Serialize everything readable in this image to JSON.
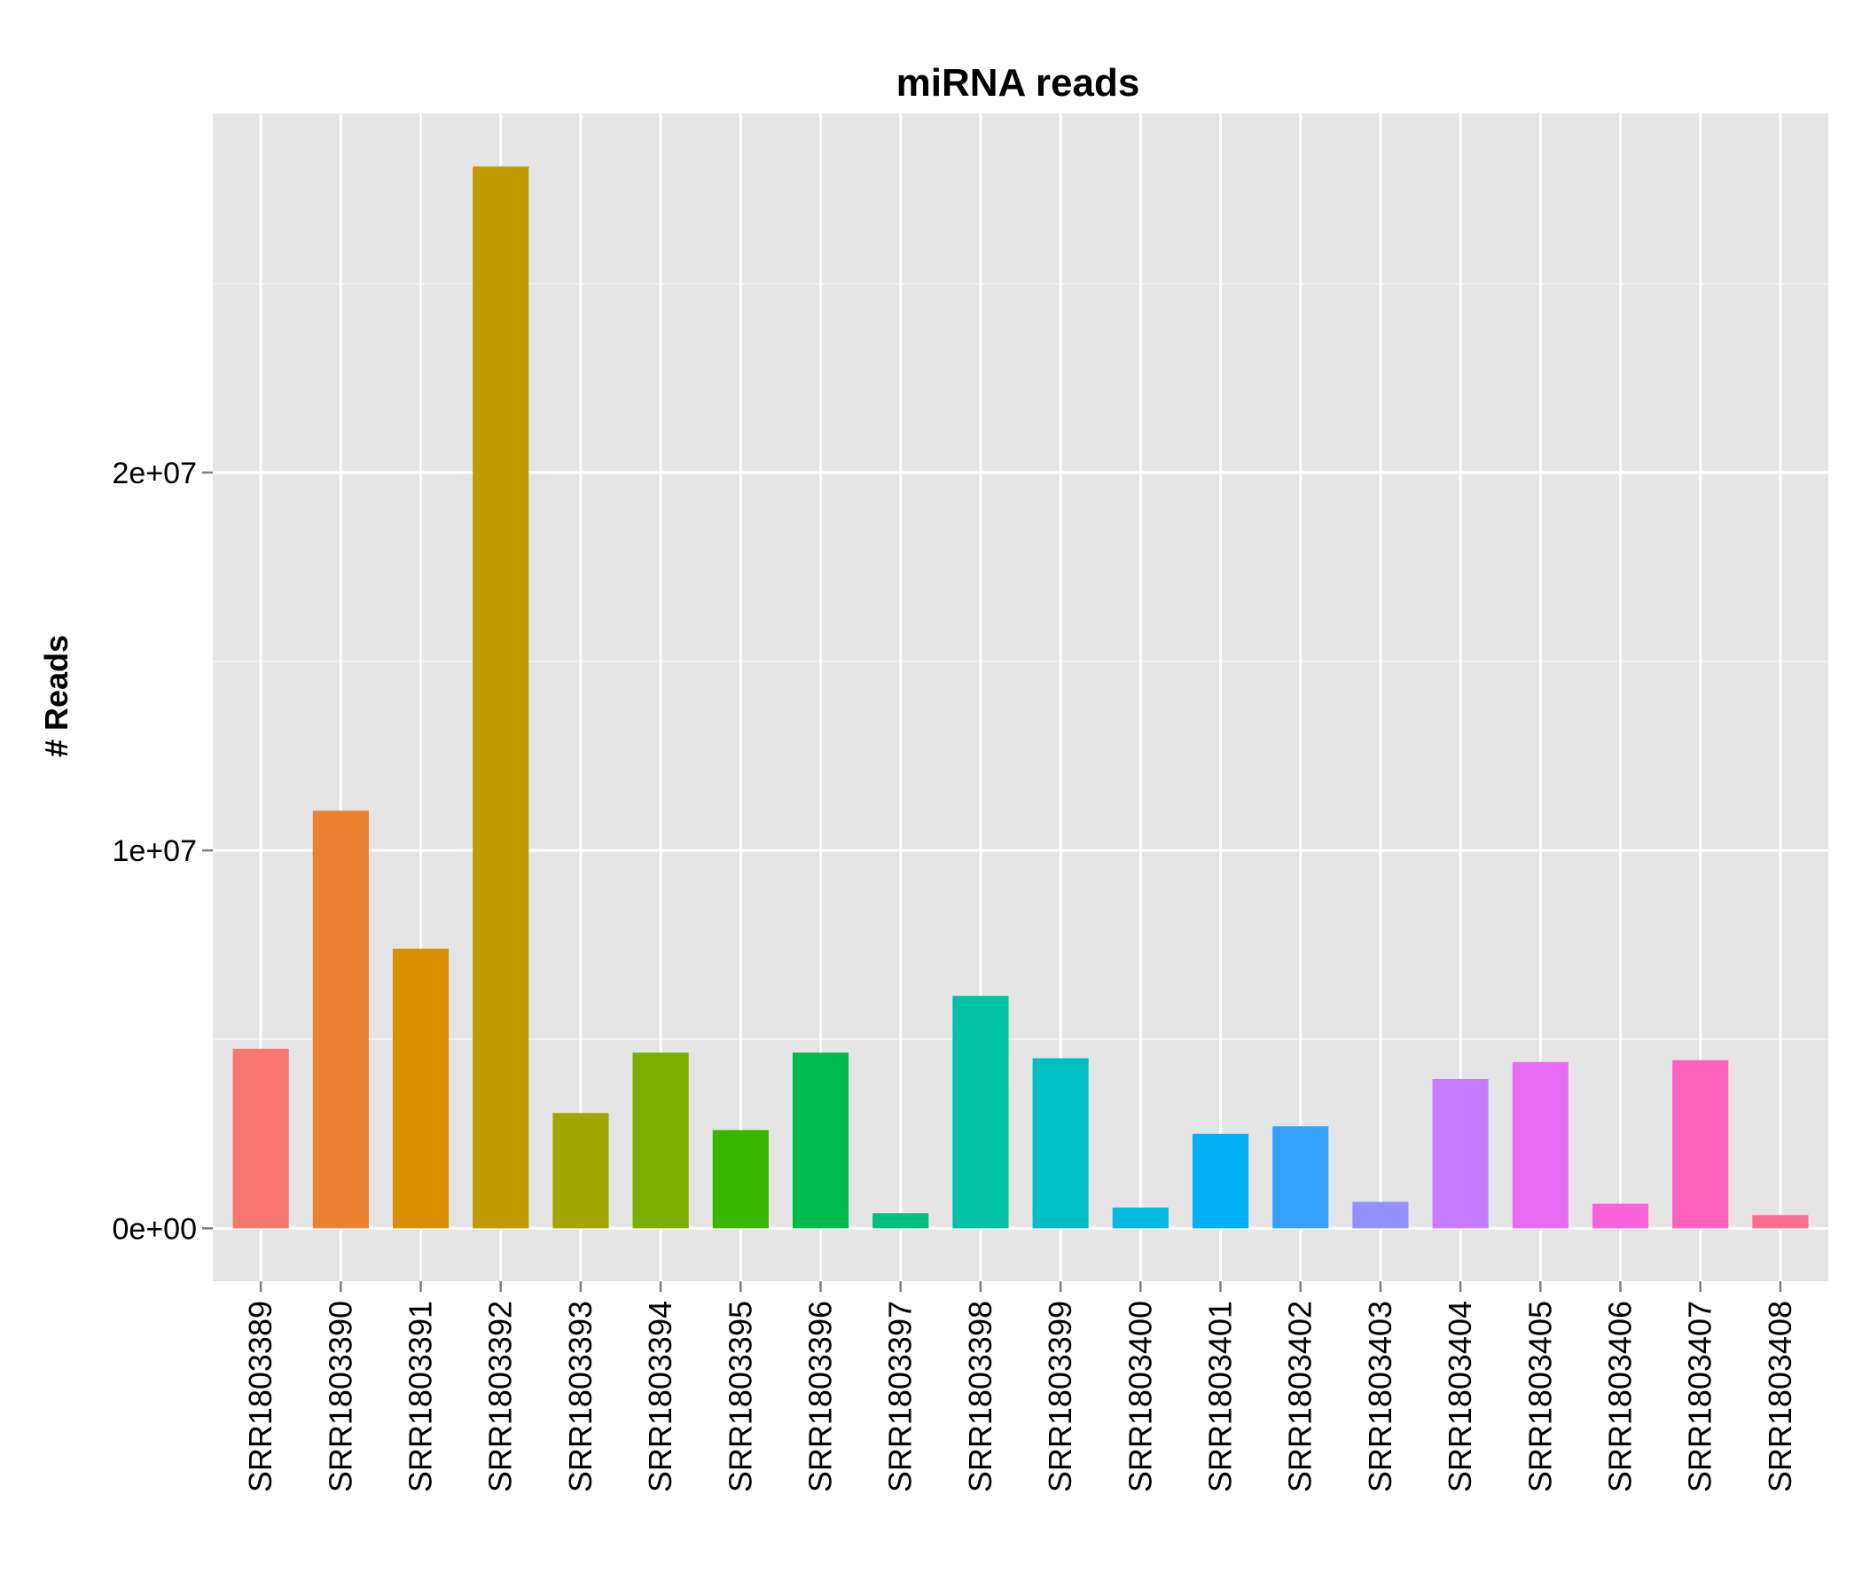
{
  "chart_data": {
    "type": "bar",
    "title": "miRNA reads",
    "xlabel": "",
    "ylabel": "# Reads",
    "categories": [
      "SRR1803389",
      "SRR1803390",
      "SRR1803391",
      "SRR1803392",
      "SRR1803393",
      "SRR1803394",
      "SRR1803395",
      "SRR1803396",
      "SRR1803397",
      "SRR1803398",
      "SRR1803399",
      "SRR1803400",
      "SRR1803401",
      "SRR1803402",
      "SRR1803403",
      "SRR1803404",
      "SRR1803405",
      "SRR1803406",
      "SRR1803407",
      "SRR1803408"
    ],
    "values": [
      4750000,
      11050000,
      7400000,
      28100000,
      3050000,
      4650000,
      2600000,
      4650000,
      400000,
      6150000,
      4500000,
      550000,
      2500000,
      2700000,
      700000,
      3950000,
      4400000,
      650000,
      4450000,
      350000
    ],
    "colors": [
      "#F8766D",
      "#EA8331",
      "#D89000",
      "#C09B00",
      "#A3A500",
      "#7CAE00",
      "#39B600",
      "#00BB4E",
      "#00BF7D",
      "#00C1A3",
      "#00BFC4",
      "#00BAE0",
      "#00B0F6",
      "#35A2FF",
      "#9590FF",
      "#C77CFF",
      "#E76BF3",
      "#FA62DB",
      "#FF62BC",
      "#FF6C91"
    ],
    "ylim": [
      -1400000,
      29500000
    ],
    "yticks": [
      0,
      10000000,
      20000000
    ],
    "ytick_labels": [
      "0e+00",
      "1e+07",
      "2e+07"
    ],
    "y_minor_ticks": [
      5000000,
      15000000,
      25000000
    ],
    "grid": true,
    "legend": "none",
    "background": "#E5E5E5",
    "grid_color": "#FFFFFF"
  }
}
